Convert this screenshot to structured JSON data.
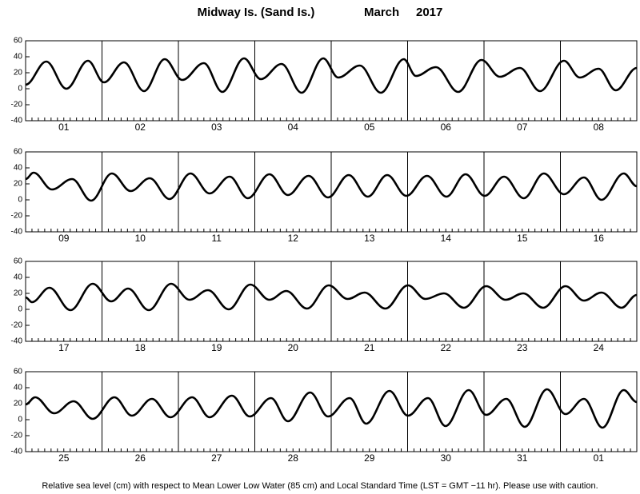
{
  "header": {
    "station": "Midway Is. (Sand Is.)",
    "month": "March",
    "year": "2017"
  },
  "footer": "Relative sea level (cm) with respect to Mean Lower Low Water (85 cm) and Local Standard Time (LST = GMT −11 hr). Please use with caution.",
  "chart_data": [
    {
      "type": "line",
      "color": "#000000",
      "xlim": [
        0,
        192
      ],
      "xticks": [
        0,
        24,
        48,
        72,
        96,
        120,
        144,
        168,
        192
      ],
      "ylim": [
        -40,
        60
      ],
      "yticks": [
        -40,
        -20,
        0,
        20,
        40,
        60
      ],
      "day_labels": [
        "01",
        "02",
        "03",
        "04",
        "05",
        "06",
        "07",
        "08"
      ],
      "x": [
        0,
        6.5,
        12.8,
        19.6,
        24.6,
        30.9,
        37.2,
        43.7,
        49.2,
        56,
        61.8,
        68.6,
        73.9,
        80.4,
        86.7,
        93.5,
        98.2,
        105,
        111.6,
        118.8,
        122.6,
        128.9,
        135.9,
        143.2,
        149,
        155.3,
        161.6,
        169.1,
        174.1,
        180,
        185.4,
        192
      ],
      "values": [
        5,
        34,
        0,
        35,
        8,
        33,
        -3,
        37,
        11,
        32,
        -4,
        38,
        12,
        31,
        -5,
        38,
        14,
        29,
        -5,
        37,
        16,
        27,
        -4,
        36,
        15,
        26,
        -3,
        35,
        14,
        25,
        -2,
        26
      ]
    },
    {
      "type": "line",
      "color": "#000000",
      "xlim": [
        0,
        192
      ],
      "xticks": [
        0,
        24,
        48,
        72,
        96,
        120,
        144,
        168,
        192
      ],
      "ylim": [
        -40,
        60
      ],
      "yticks": [
        -40,
        -20,
        0,
        20,
        40,
        60
      ],
      "day_labels": [
        "09",
        "10",
        "11",
        "12",
        "13",
        "14",
        "15",
        "16"
      ],
      "x": [
        0,
        2.5,
        8.3,
        14.6,
        20.6,
        27.1,
        33,
        39,
        45.2,
        51.8,
        57.8,
        64.1,
        69.8,
        76.6,
        82.4,
        88.9,
        95,
        101.5,
        107.5,
        113.6,
        119.6,
        126.1,
        132.2,
        138.2,
        144.2,
        150.3,
        156.5,
        162.8,
        169.1,
        175.4,
        180.9,
        187.9,
        192
      ],
      "values": [
        26,
        34,
        13,
        26,
        -1,
        33,
        11,
        27,
        1,
        33,
        8,
        29,
        2,
        32,
        6,
        30,
        3,
        31,
        4,
        31,
        5,
        30,
        4,
        32,
        5,
        29,
        2,
        33,
        7,
        28,
        0,
        33,
        17
      ]
    },
    {
      "type": "line",
      "color": "#000000",
      "xlim": [
        0,
        192
      ],
      "xticks": [
        0,
        24,
        48,
        72,
        96,
        120,
        144,
        168,
        192
      ],
      "ylim": [
        -40,
        60
      ],
      "yticks": [
        -40,
        -20,
        0,
        20,
        40,
        60
      ],
      "day_labels": [
        "17",
        "18",
        "19",
        "20",
        "21",
        "22",
        "23",
        "24"
      ],
      "x": [
        0,
        2,
        7.5,
        14.1,
        21.1,
        26.9,
        32.2,
        38.7,
        45.7,
        51.5,
        57.3,
        63.8,
        70.6,
        76.6,
        81.9,
        88.4,
        95.2,
        101.2,
        106.5,
        113,
        120.1,
        125.6,
        131.4,
        137.7,
        144.7,
        150.8,
        156.3,
        162.6,
        169.6,
        175.4,
        180.9,
        187.2,
        192
      ],
      "values": [
        15,
        9,
        27,
        -1,
        32,
        10,
        26,
        -1,
        32,
        12,
        24,
        0,
        31,
        12,
        23,
        1,
        30,
        13,
        21,
        1,
        30,
        13,
        20,
        2,
        29,
        12,
        20,
        2,
        29,
        11,
        21,
        2,
        18
      ]
    },
    {
      "type": "line",
      "color": "#000000",
      "xlim": [
        0,
        192
      ],
      "xticks": [
        0,
        24,
        48,
        72,
        96,
        120,
        144,
        168,
        192
      ],
      "ylim": [
        -40,
        60
      ],
      "yticks": [
        -40,
        -20,
        0,
        20,
        40,
        60
      ],
      "day_labels": [
        "25",
        "26",
        "27",
        "28",
        "29",
        "30",
        "31",
        "01"
      ],
      "x": [
        0,
        3,
        9,
        15.1,
        21.1,
        27.9,
        33.4,
        39.7,
        45.5,
        52.3,
        57.8,
        64.8,
        70.4,
        77.1,
        82.4,
        89.4,
        95,
        101.8,
        107,
        114.3,
        120.1,
        126.4,
        131.9,
        139.2,
        144.7,
        151,
        156.8,
        163.8,
        169.6,
        175.4,
        181.2,
        187.9,
        192
      ],
      "values": [
        19,
        28,
        8,
        23,
        1,
        28,
        5,
        26,
        3,
        28,
        3,
        30,
        4,
        27,
        -2,
        34,
        4,
        27,
        -5,
        36,
        5,
        27,
        -8,
        37,
        6,
        26,
        -9,
        38,
        7,
        26,
        -10,
        37,
        22
      ]
    }
  ]
}
